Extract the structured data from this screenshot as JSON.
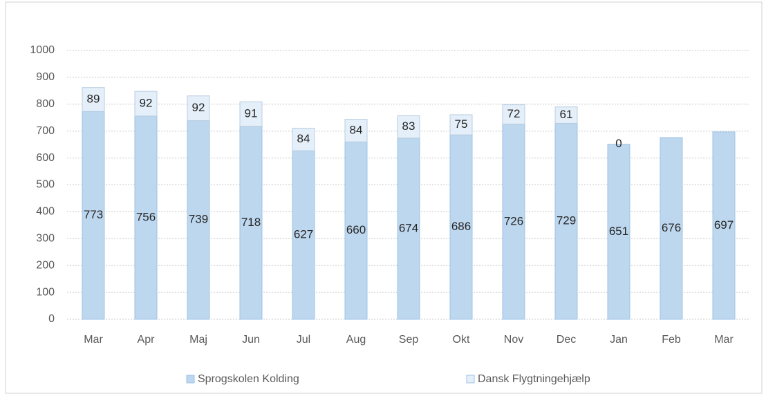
{
  "chart_data": {
    "type": "stacked_bar",
    "categories": [
      "Mar",
      "Apr",
      "Maj",
      "Jun",
      "Jul",
      "Aug",
      "Sep",
      "Okt",
      "Nov",
      "Dec",
      "Jan",
      "Feb",
      "Mar"
    ],
    "series": [
      {
        "name": "Sprogskolen Kolding",
        "color": "#bdd7ee",
        "values": [
          773,
          756,
          739,
          718,
          627,
          660,
          674,
          686,
          726,
          729,
          651,
          676,
          697
        ]
      },
      {
        "name": "Dansk Flygtningehjælp",
        "color": "#e4eff9",
        "values": [
          89,
          92,
          92,
          91,
          84,
          84,
          83,
          75,
          72,
          61,
          0,
          null,
          null
        ]
      }
    ],
    "ylim": [
      0,
      1000
    ],
    "yticks": [
      0,
      100,
      200,
      300,
      400,
      500,
      600,
      700,
      800,
      900,
      1000
    ],
    "grid": true,
    "legend": "bottom"
  }
}
